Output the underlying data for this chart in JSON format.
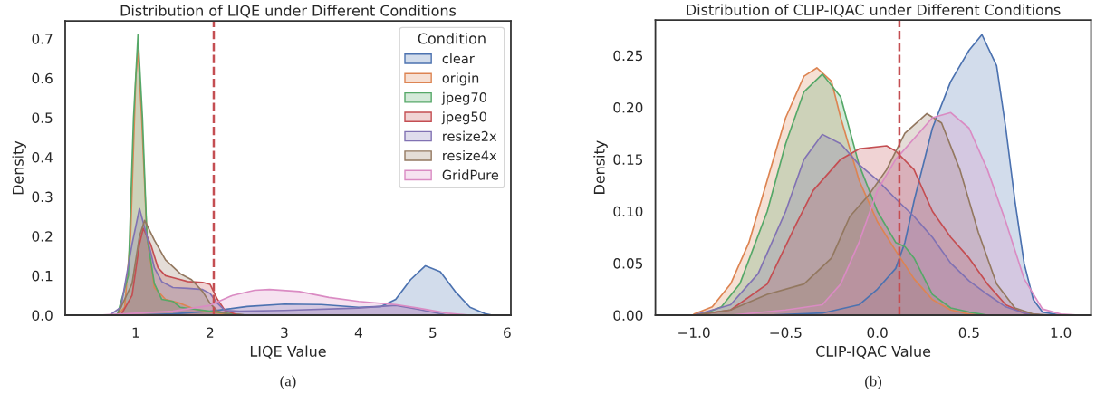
{
  "chart_data": [
    {
      "type": "area",
      "title": "Distribution of LIQE under Different Conditions",
      "xlabel": "LIQE Value",
      "ylabel": "Density",
      "legend_title": "Condition",
      "legend": "top right",
      "grid": false,
      "xlim": [
        0.05,
        6.05
      ],
      "ylim": [
        0,
        0.745
      ],
      "xticks": [
        1,
        2,
        3,
        4,
        5,
        6
      ],
      "yticks": [
        {
          "value": 0,
          "label": "0.0"
        },
        0.1,
        0.2,
        0.3,
        0.4,
        0.5,
        0.6,
        0.7
      ],
      "ref_lines": [
        {
          "axis": "x",
          "value": 2.05,
          "color": "#c44e52",
          "line_style": "dashed"
        }
      ],
      "annotations": [
        "(a)"
      ],
      "series": [
        {
          "name": "clear",
          "color": "#4c72b0",
          "x": [
            1.0,
            1.5,
            2.0,
            2.5,
            3.0,
            3.5,
            4.0,
            4.3,
            4.5,
            4.7,
            4.9,
            5.1,
            5.3,
            5.5,
            5.7,
            5.8
          ],
          "values": [
            0,
            0.003,
            0.01,
            0.022,
            0.028,
            0.027,
            0.02,
            0.022,
            0.04,
            0.09,
            0.125,
            0.11,
            0.06,
            0.02,
            0.004,
            0
          ]
        },
        {
          "name": "origin",
          "color": "#dd8452",
          "x": [
            0.75,
            0.85,
            0.93,
            1.0,
            1.03,
            1.08,
            1.15,
            1.25,
            1.4,
            1.6,
            1.8,
            2.0,
            2.2,
            2.4
          ],
          "values": [
            0,
            0.02,
            0.2,
            0.6,
            0.67,
            0.5,
            0.2,
            0.07,
            0.04,
            0.03,
            0.015,
            0.008,
            0.003,
            0
          ]
        },
        {
          "name": "jpeg70",
          "color": "#55a868",
          "x": [
            0.75,
            0.9,
            0.97,
            1.03,
            1.09,
            1.15,
            1.25,
            1.35,
            1.5,
            1.6,
            1.8,
            2.0,
            2.3,
            2.5
          ],
          "values": [
            0,
            0.1,
            0.5,
            0.71,
            0.5,
            0.2,
            0.08,
            0.04,
            0.035,
            0.02,
            0.015,
            0.01,
            0.003,
            0
          ]
        },
        {
          "name": "jpeg50",
          "color": "#c44e52",
          "x": [
            0.8,
            0.95,
            1.05,
            1.1,
            1.2,
            1.3,
            1.4,
            1.5,
            1.7,
            1.9,
            2.0,
            2.1,
            2.2,
            2.35,
            2.5
          ],
          "values": [
            0,
            0.05,
            0.18,
            0.22,
            0.18,
            0.12,
            0.1,
            0.095,
            0.085,
            0.083,
            0.078,
            0.04,
            0.012,
            0.002,
            0
          ]
        },
        {
          "name": "resize2x",
          "color": "#8172b3",
          "x": [
            0.65,
            0.8,
            0.95,
            1.05,
            1.15,
            1.25,
            1.35,
            1.5,
            1.7,
            1.9,
            2.0,
            2.1,
            2.2,
            2.4,
            3.0,
            4.0,
            4.5,
            4.8,
            5.2
          ],
          "values": [
            0,
            0.02,
            0.18,
            0.27,
            0.2,
            0.12,
            0.085,
            0.07,
            0.068,
            0.065,
            0.055,
            0.03,
            0.012,
            0.01,
            0.012,
            0.018,
            0.025,
            0.015,
            0
          ]
        },
        {
          "name": "resize4x",
          "color": "#937860",
          "x": [
            0.75,
            0.95,
            1.05,
            1.12,
            1.25,
            1.4,
            1.6,
            1.75,
            1.9,
            2.0,
            2.1,
            2.3
          ],
          "values": [
            0,
            0.08,
            0.2,
            0.24,
            0.19,
            0.14,
            0.105,
            0.09,
            0.06,
            0.03,
            0.01,
            0
          ]
        },
        {
          "name": "GridPure",
          "color": "#da8bc3",
          "x": [
            0.5,
            1.0,
            1.5,
            2.0,
            2.3,
            2.6,
            2.8,
            3.2,
            3.6,
            4.0,
            4.5,
            4.8,
            5.2,
            5.5
          ],
          "values": [
            0,
            0.005,
            0.01,
            0.025,
            0.05,
            0.063,
            0.065,
            0.06,
            0.045,
            0.035,
            0.027,
            0.018,
            0.005,
            0
          ]
        }
      ]
    },
    {
      "type": "area",
      "title": "Distribution of CLIP-IQAC under Different Conditions",
      "xlabel": "CLIP-IQAC Value",
      "ylabel": "Density",
      "grid": false,
      "xlim": [
        -1.21,
        1.165
      ],
      "ylim": [
        0,
        0.284
      ],
      "xticks": [
        {
          "value": -1.0,
          "label": "−1.0"
        },
        {
          "value": -0.5,
          "label": "−0.5"
        },
        {
          "value": 0,
          "label": "0.0"
        },
        0.5,
        {
          "value": 1,
          "label": "1.0"
        }
      ],
      "yticks": [
        {
          "value": 0,
          "label": "0.00"
        },
        0.05,
        {
          "value": 0.1,
          "label": "0.10"
        },
        0.15,
        {
          "value": 0.2,
          "label": "0.20"
        },
        0.25
      ],
      "ref_lines": [
        {
          "axis": "x",
          "value": 0.12,
          "color": "#c44e52",
          "line_style": "dashed"
        }
      ],
      "annotations": [
        "(b)"
      ],
      "series": [
        {
          "color": "#4c72b0",
          "x": [
            -0.6,
            -0.3,
            -0.1,
            0.0,
            0.1,
            0.15,
            0.2,
            0.3,
            0.4,
            0.45,
            0.5,
            0.57,
            0.65,
            0.7,
            0.75,
            0.8,
            0.85,
            0.9,
            1.0
          ],
          "values": [
            0,
            0.002,
            0.01,
            0.025,
            0.045,
            0.07,
            0.11,
            0.18,
            0.225,
            0.24,
            0.255,
            0.27,
            0.24,
            0.18,
            0.11,
            0.05,
            0.015,
            0.003,
            0
          ]
        },
        {
          "color": "#dd8452",
          "x": [
            -1.0,
            -0.9,
            -0.8,
            -0.7,
            -0.6,
            -0.5,
            -0.4,
            -0.33,
            -0.25,
            -0.2,
            -0.1,
            0.0,
            0.1,
            0.2,
            0.3,
            0.4,
            0.5,
            0.6
          ],
          "values": [
            0.001,
            0.008,
            0.03,
            0.07,
            0.13,
            0.19,
            0.23,
            0.238,
            0.225,
            0.19,
            0.13,
            0.09,
            0.062,
            0.035,
            0.015,
            0.005,
            0.001,
            0
          ]
        },
        {
          "color": "#55a868",
          "x": [
            -0.95,
            -0.85,
            -0.75,
            -0.6,
            -0.5,
            -0.4,
            -0.3,
            -0.2,
            -0.1,
            0.0,
            0.1,
            0.15,
            0.2,
            0.3,
            0.4,
            0.5,
            0.6
          ],
          "values": [
            0.001,
            0.008,
            0.03,
            0.1,
            0.165,
            0.215,
            0.232,
            0.21,
            0.145,
            0.1,
            0.07,
            0.066,
            0.055,
            0.02,
            0.007,
            0.003,
            0
          ]
        },
        {
          "color": "#c44e52",
          "x": [
            -1.0,
            -0.8,
            -0.6,
            -0.45,
            -0.35,
            -0.2,
            -0.1,
            0.05,
            0.1,
            0.2,
            0.3,
            0.4,
            0.5,
            0.6,
            0.7,
            0.8,
            0.9
          ],
          "values": [
            0,
            0.005,
            0.03,
            0.085,
            0.12,
            0.15,
            0.16,
            0.163,
            0.158,
            0.14,
            0.1,
            0.075,
            0.055,
            0.03,
            0.01,
            0.002,
            0
          ]
        },
        {
          "color": "#8172b3",
          "x": [
            -1.0,
            -0.8,
            -0.65,
            -0.5,
            -0.4,
            -0.3,
            -0.2,
            -0.1,
            0.0,
            0.1,
            0.2,
            0.3,
            0.4,
            0.5,
            0.6,
            0.7,
            0.8,
            0.9
          ],
          "values": [
            0,
            0.01,
            0.04,
            0.1,
            0.15,
            0.174,
            0.165,
            0.145,
            0.13,
            0.112,
            0.095,
            0.075,
            0.05,
            0.033,
            0.02,
            0.008,
            0.002,
            0
          ]
        },
        {
          "color": "#937860",
          "x": [
            -1.0,
            -0.8,
            -0.6,
            -0.4,
            -0.25,
            -0.15,
            -0.05,
            0.05,
            0.15,
            0.27,
            0.35,
            0.45,
            0.55,
            0.65,
            0.75,
            0.85,
            0.95
          ],
          "values": [
            0,
            0.005,
            0.02,
            0.03,
            0.055,
            0.095,
            0.115,
            0.14,
            0.175,
            0.194,
            0.185,
            0.14,
            0.08,
            0.03,
            0.007,
            0.001,
            0
          ]
        },
        {
          "color": "#da8bc3",
          "x": [
            -0.8,
            -0.5,
            -0.3,
            -0.2,
            -0.1,
            0.0,
            0.1,
            0.2,
            0.3,
            0.4,
            0.5,
            0.6,
            0.7,
            0.8,
            0.9,
            1.0,
            1.1
          ],
          "values": [
            0,
            0.005,
            0.01,
            0.03,
            0.07,
            0.12,
            0.15,
            0.17,
            0.19,
            0.195,
            0.18,
            0.14,
            0.09,
            0.035,
            0.006,
            0.001,
            0
          ]
        }
      ]
    }
  ]
}
